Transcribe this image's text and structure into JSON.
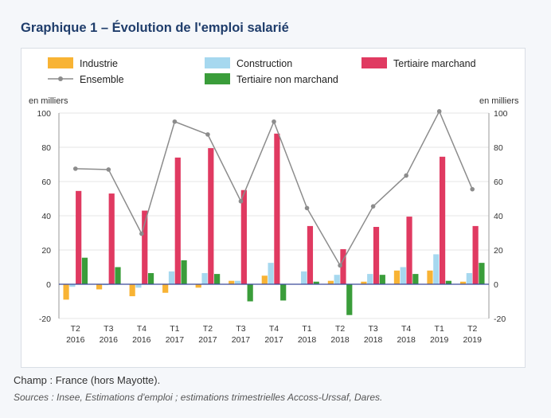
{
  "title": "Graphique 1 – Évolution de l'emploi salarié",
  "note": "Champ : France (hors Mayotte).",
  "sources": "Sources : Insee, Estimations d'emploi ; estimations trimestrielles Accoss-Urssaf, Dares.",
  "chart_data": {
    "type": "bar",
    "unit_left": "en milliers",
    "unit_right": "en milliers",
    "ylim": [
      -20,
      100
    ],
    "yticks": [
      -20,
      0,
      20,
      40,
      60,
      80,
      100
    ],
    "categories": [
      {
        "q": "T2",
        "y": "2016"
      },
      {
        "q": "T3",
        "y": "2016"
      },
      {
        "q": "T4",
        "y": "2016"
      },
      {
        "q": "T1",
        "y": "2017"
      },
      {
        "q": "T2",
        "y": "2017"
      },
      {
        "q": "T3",
        "y": "2017"
      },
      {
        "q": "T4",
        "y": "2017"
      },
      {
        "q": "T1",
        "y": "2018"
      },
      {
        "q": "T2",
        "y": "2018"
      },
      {
        "q": "T3",
        "y": "2018"
      },
      {
        "q": "T4",
        "y": "2018"
      },
      {
        "q": "T1",
        "y": "2019"
      },
      {
        "q": "T2",
        "y": "2019"
      }
    ],
    "series": [
      {
        "name": "Industrie",
        "kind": "bar",
        "color": "#f8b334",
        "values": [
          -9,
          -3,
          -7,
          -5,
          -2,
          2,
          5,
          0,
          2,
          1.5,
          8,
          8,
          1.5
        ]
      },
      {
        "name": "Construction",
        "kind": "bar",
        "color": "#a6d8ef",
        "values": [
          -1.5,
          -0.5,
          -2,
          7.5,
          6.5,
          2,
          12.5,
          7.5,
          5.5,
          6,
          10,
          17.5,
          6.5
        ]
      },
      {
        "name": "Tertiaire marchand",
        "kind": "bar",
        "color": "#e03a61",
        "values": [
          54.5,
          53,
          43,
          74,
          79.5,
          55,
          88,
          34,
          20.5,
          33.5,
          39.5,
          74.5,
          34
        ]
      },
      {
        "name": "Tertiaire non marchand",
        "kind": "bar",
        "color": "#3a9d3a",
        "values": [
          15.5,
          10,
          6.5,
          14,
          6,
          -10,
          -9.5,
          1.5,
          -18,
          5.5,
          6,
          2,
          12.5
        ]
      },
      {
        "name": "Ensemble",
        "kind": "line",
        "color": "#8c8c8c",
        "values": [
          67.5,
          67,
          29.5,
          95,
          87.5,
          48.5,
          95,
          44.5,
          11,
          45.5,
          63.5,
          101,
          55.5
        ]
      }
    ],
    "legend": [
      {
        "name": "Industrie",
        "kind": "bar",
        "color": "#f8b334"
      },
      {
        "name": "Construction",
        "kind": "bar",
        "color": "#a6d8ef"
      },
      {
        "name": "Tertiaire marchand",
        "kind": "bar",
        "color": "#e03a61"
      },
      {
        "name": "Ensemble",
        "kind": "line",
        "color": "#8c8c8c"
      },
      {
        "name": "Tertiaire non marchand",
        "kind": "bar",
        "color": "#3a9d3a"
      }
    ],
    "zero_line_color": "#3b4a9a"
  }
}
